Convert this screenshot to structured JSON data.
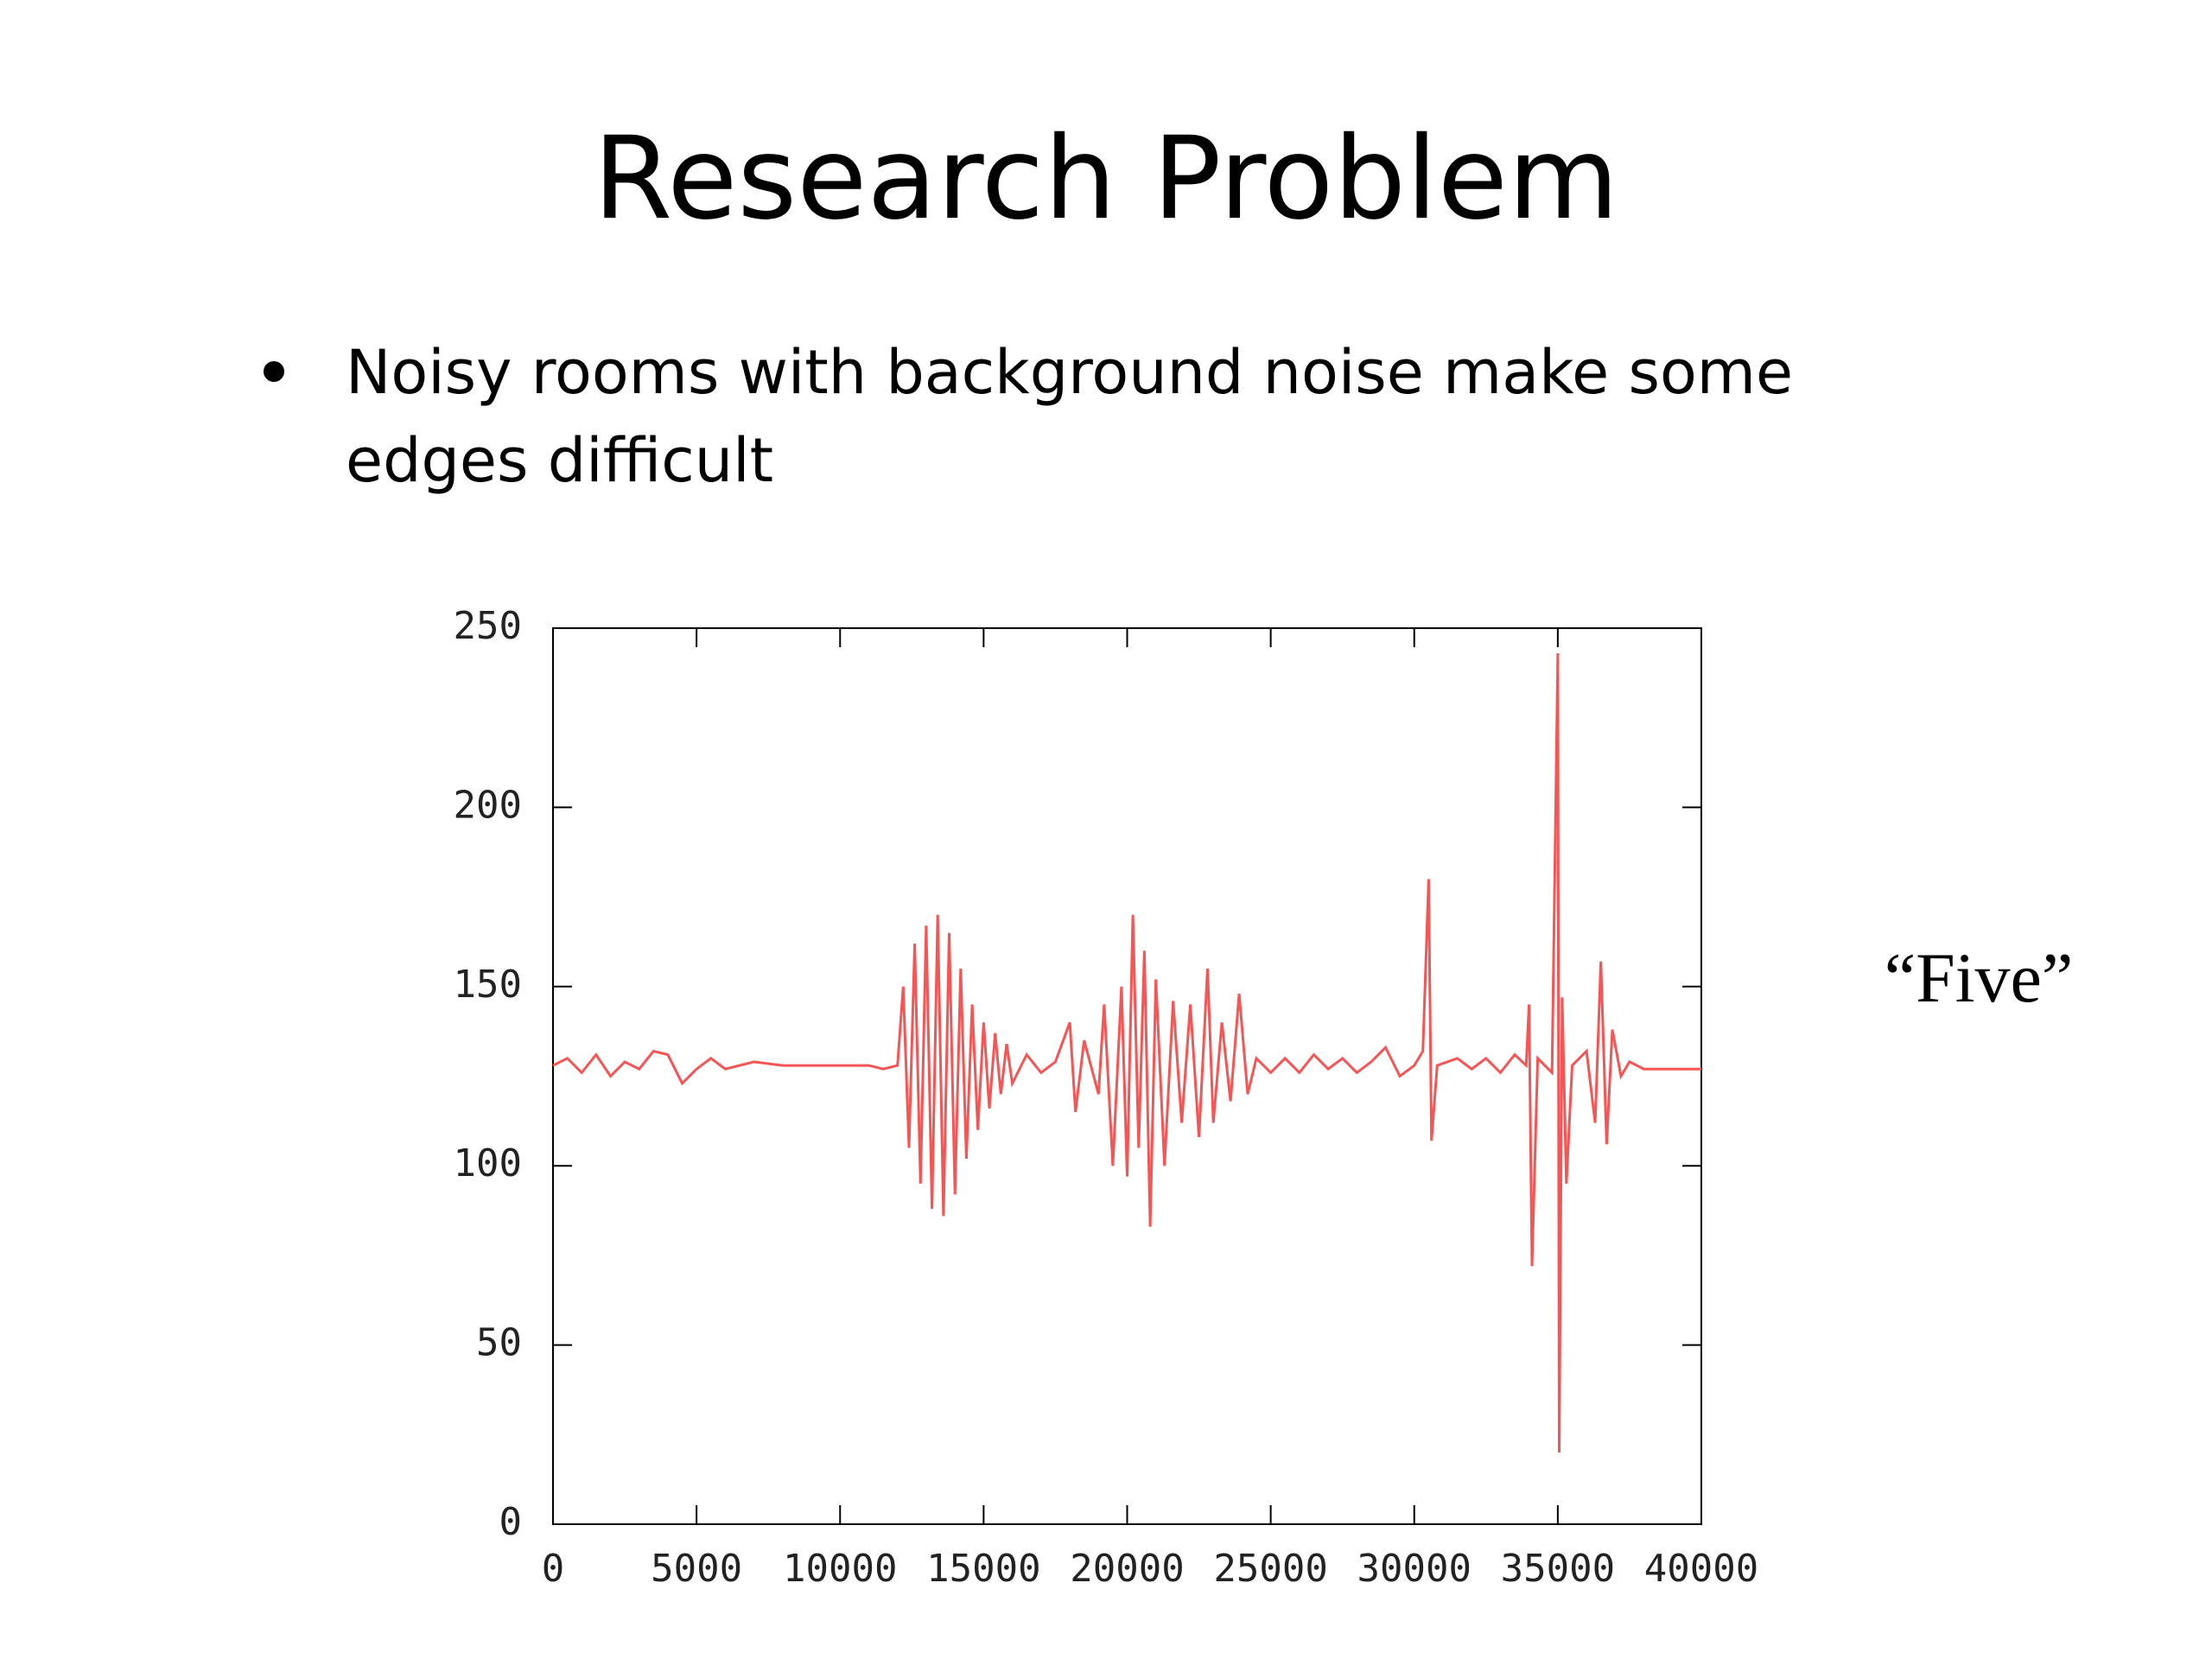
{
  "title": "Research Problem",
  "bullets": [
    "Noisy rooms with background noise make some edges difficult"
  ],
  "chart_data": {
    "type": "line",
    "annotation": "“Five”",
    "color": "#f55555",
    "x": [
      0,
      500,
      1000,
      1500,
      2000,
      2500,
      3000,
      3500,
      4000,
      4500,
      5000,
      5500,
      6000,
      7000,
      8000,
      9000,
      10000,
      11000,
      11500,
      12000,
      12200,
      12400,
      12600,
      12800,
      13000,
      13200,
      13400,
      13600,
      13800,
      14000,
      14200,
      14400,
      14600,
      14800,
      15000,
      15200,
      15400,
      15600,
      15800,
      16000,
      16500,
      17000,
      17500,
      18000,
      18200,
      18500,
      19000,
      19200,
      19500,
      19800,
      20000,
      20200,
      20400,
      20600,
      20800,
      21000,
      21300,
      21600,
      21900,
      22200,
      22500,
      22800,
      23000,
      23300,
      23600,
      23900,
      24200,
      24500,
      25000,
      25500,
      26000,
      26500,
      27000,
      27500,
      28000,
      28500,
      29000,
      29500,
      30000,
      30300,
      30500,
      30600,
      30800,
      31500,
      32000,
      32500,
      33000,
      33500,
      33900,
      34000,
      34100,
      34300,
      34800,
      35000,
      35050,
      35150,
      35300,
      35500,
      36000,
      36300,
      36500,
      36700,
      36900,
      37200,
      37500,
      38000,
      39000,
      40000
    ],
    "values": [
      128,
      130,
      126,
      131,
      125,
      129,
      127,
      132,
      131,
      123,
      127,
      130,
      127,
      129,
      128,
      128,
      128,
      128,
      127,
      128,
      150,
      105,
      162,
      95,
      167,
      88,
      170,
      86,
      165,
      92,
      155,
      102,
      145,
      110,
      140,
      116,
      137,
      120,
      134,
      123,
      131,
      126,
      129,
      140,
      115,
      135,
      120,
      145,
      100,
      150,
      97,
      170,
      105,
      160,
      83,
      152,
      100,
      146,
      112,
      145,
      108,
      155,
      112,
      140,
      118,
      148,
      120,
      130,
      126,
      130,
      126,
      131,
      127,
      130,
      126,
      129,
      133,
      125,
      128,
      132,
      180,
      107,
      128,
      130,
      127,
      130,
      126,
      131,
      128,
      145,
      72,
      130,
      126,
      243,
      20,
      147,
      95,
      128,
      132,
      112,
      157,
      106,
      138,
      125,
      129,
      127,
      127,
      127
    ],
    "xlim": [
      0,
      40000
    ],
    "xticks": [
      0,
      5000,
      10000,
      15000,
      20000,
      25000,
      30000,
      35000,
      40000
    ],
    "ylim": [
      0,
      250
    ],
    "yticks": [
      0,
      50,
      100,
      150,
      200,
      250
    ]
  }
}
